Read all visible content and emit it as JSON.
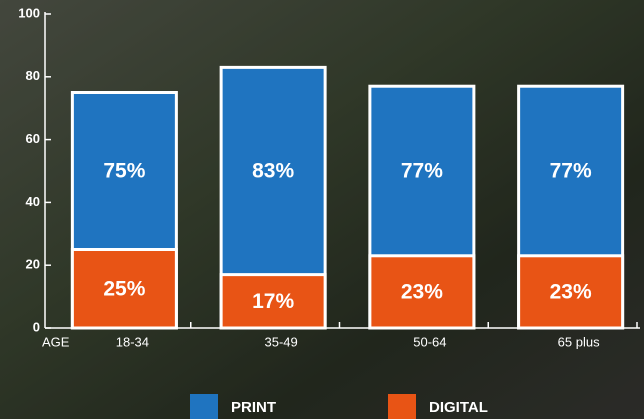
{
  "chart_data": {
    "type": "bar",
    "overlap": true,
    "xlabel": "AGE",
    "categories": [
      "18-34",
      "35-49",
      "50-64",
      "65 plus"
    ],
    "series": [
      {
        "name": "PRINT",
        "color": "#1f74c0",
        "values": [
          75,
          83,
          77,
          77
        ],
        "value_labels": [
          "75%",
          "83%",
          "77%",
          "77%"
        ]
      },
      {
        "name": "DIGITAL",
        "color": "#e85415",
        "values": [
          25,
          17,
          23,
          23
        ],
        "value_labels": [
          "25%",
          "17%",
          "23%",
          "23%"
        ]
      }
    ],
    "ylim": [
      0,
      100
    ],
    "yticks": [
      0,
      20,
      40,
      60,
      80,
      100
    ],
    "legend": "bottom"
  }
}
